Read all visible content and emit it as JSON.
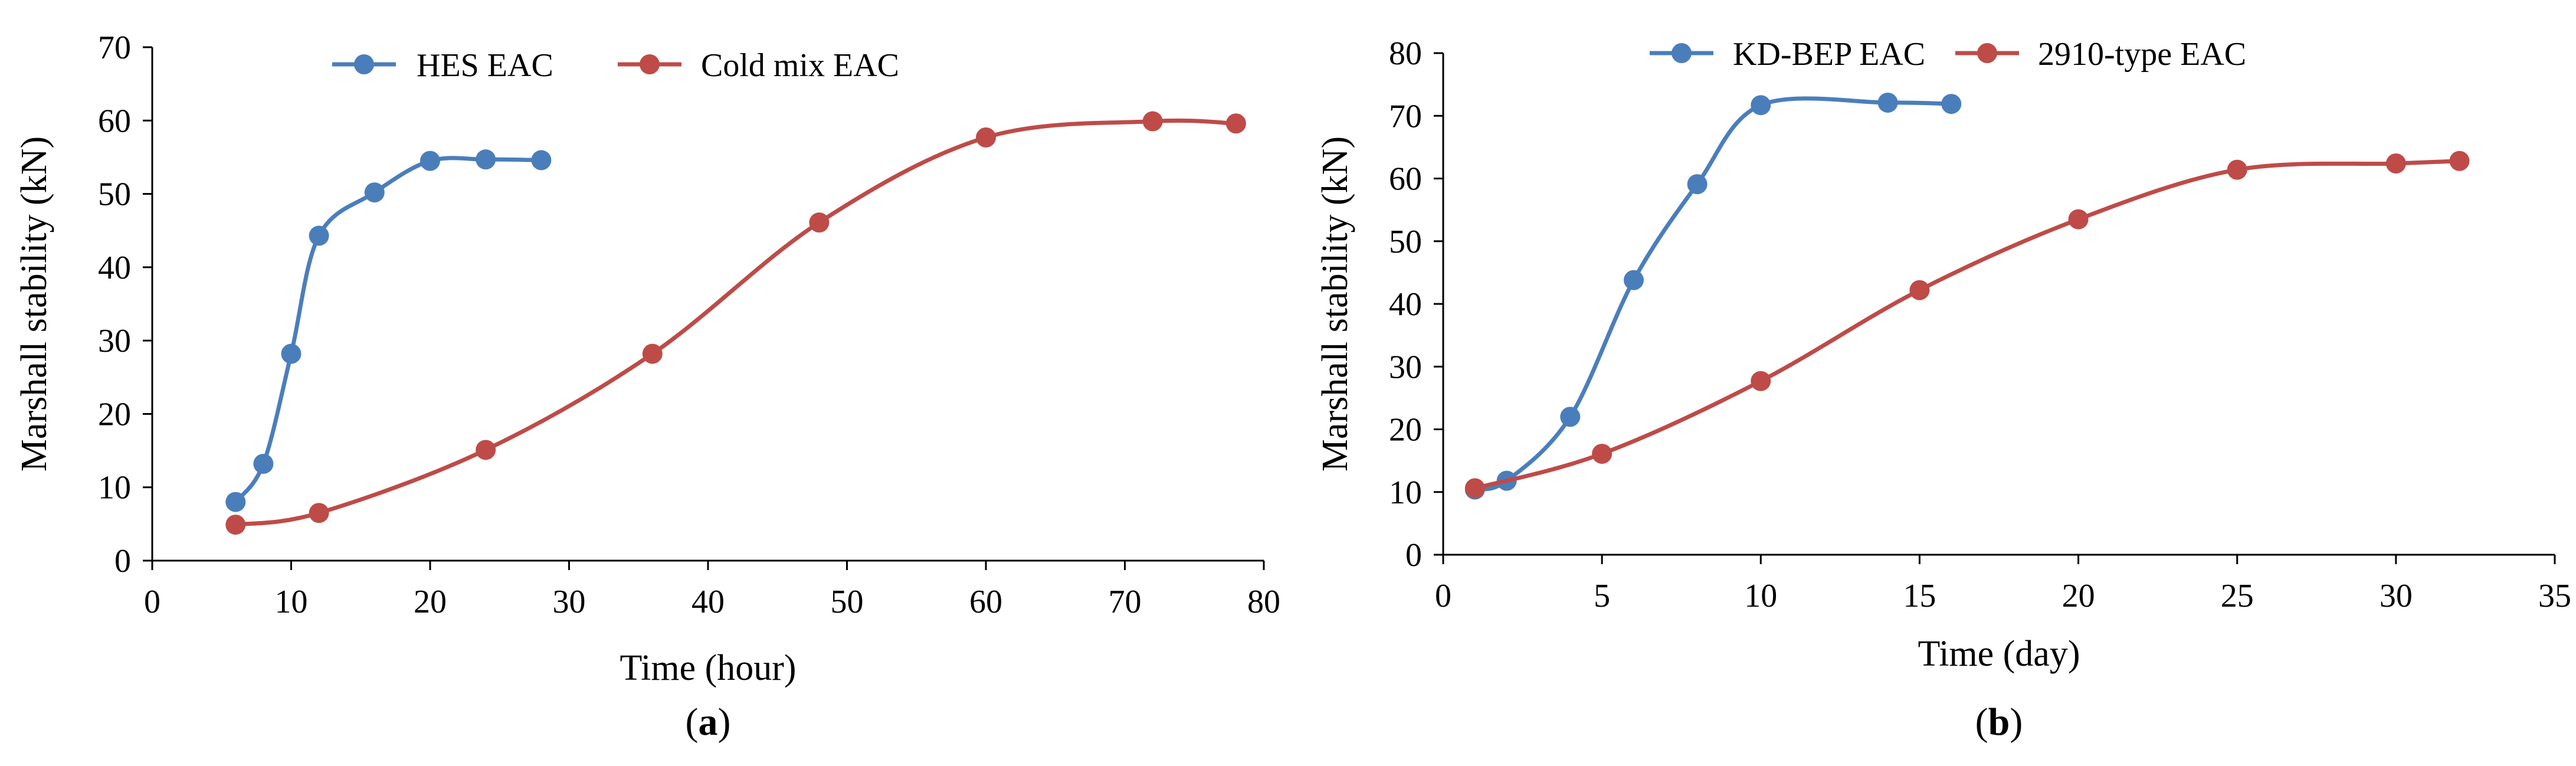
{
  "chart_data": [
    {
      "type": "line",
      "panel_label": "(a)",
      "xlabel": "Time (hour)",
      "ylabel": "Marshall stability (kN)",
      "xlim": [
        0,
        80
      ],
      "ylim": [
        0,
        70
      ],
      "xticks": [
        0,
        10,
        20,
        30,
        40,
        50,
        60,
        70,
        80
      ],
      "yticks": [
        0,
        10,
        20,
        30,
        40,
        50,
        60,
        70
      ],
      "grid": false,
      "legend_position": "top",
      "series": [
        {
          "name": "HES EAC",
          "color": "#4a7ebb",
          "points": [
            [
              6,
              8.0
            ],
            [
              8,
              13.2
            ],
            [
              10,
              28.2
            ],
            [
              12,
              44.3
            ],
            [
              16,
              50.2
            ],
            [
              20,
              54.5
            ],
            [
              24,
              54.7
            ],
            [
              28,
              54.6
            ]
          ]
        },
        {
          "name": "Cold mix EAC",
          "color": "#be4b48",
          "points": [
            [
              6,
              4.9
            ],
            [
              12,
              6.5
            ],
            [
              24,
              15.1
            ],
            [
              36,
              28.2
            ],
            [
              48,
              46.1
            ],
            [
              60,
              57.7
            ],
            [
              72,
              59.9
            ],
            [
              78,
              59.6
            ]
          ]
        }
      ]
    },
    {
      "type": "line",
      "panel_label": "(b)",
      "xlabel": "Time (day)",
      "ylabel": "Marshall stability (kN)",
      "xlim": [
        0,
        35
      ],
      "ylim": [
        0,
        80
      ],
      "xticks": [
        0,
        5,
        10,
        15,
        20,
        25,
        30,
        35
      ],
      "yticks": [
        0,
        10,
        20,
        30,
        40,
        50,
        60,
        70,
        80
      ],
      "grid": false,
      "legend_position": "top",
      "series": [
        {
          "name": "KD-BEP EAC",
          "color": "#4a7ebb",
          "points": [
            [
              1,
              10.4
            ],
            [
              2,
              11.8
            ],
            [
              4,
              22.0
            ],
            [
              6,
              43.8
            ],
            [
              8,
              59.1
            ],
            [
              10,
              71.7
            ],
            [
              14,
              72.1
            ],
            [
              16,
              71.9
            ]
          ]
        },
        {
          "name": "2910-type EAC",
          "color": "#be4b48",
          "points": [
            [
              1,
              10.6
            ],
            [
              5,
              16.1
            ],
            [
              10,
              27.7
            ],
            [
              15,
              42.2
            ],
            [
              20,
              53.5
            ],
            [
              25,
              61.4
            ],
            [
              30,
              62.4
            ],
            [
              32,
              62.8
            ]
          ]
        }
      ]
    }
  ]
}
